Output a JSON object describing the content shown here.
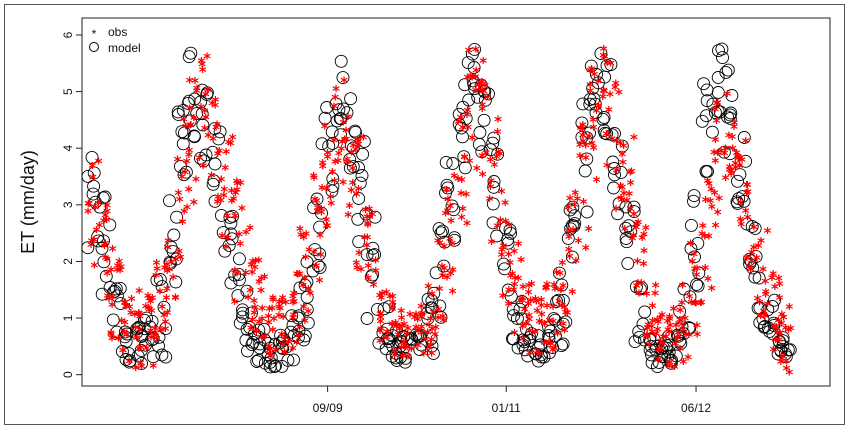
{
  "chart_data": {
    "type": "scatter",
    "title": "",
    "xlabel": "",
    "ylabel": "ET (mm/day)",
    "ylim": [
      -0.2,
      6.3
    ],
    "yticks": [
      0,
      1,
      2,
      3,
      4,
      5,
      6
    ],
    "x_range_months": [
      "2007-11",
      "2013-06"
    ],
    "x_ticks": [
      {
        "label": "09/09",
        "date": "2009-09"
      },
      {
        "label": "01/11",
        "date": "2011-01"
      },
      {
        "label": "06/12",
        "date": "2012-06"
      }
    ],
    "grid": false,
    "legend_position": "top-left",
    "legend": [
      {
        "name": "obs",
        "marker": "*",
        "color": "#ff0000"
      },
      {
        "name": "model",
        "marker": "o",
        "color": "#000000"
      }
    ],
    "series": [
      {
        "name": "obs",
        "marker": "*",
        "color": "#ff0000",
        "envelope": [
          {
            "date": "2007-12",
            "low": 1.8,
            "high": 3.8
          },
          {
            "date": "2008-01",
            "low": 1.2,
            "high": 3.2
          },
          {
            "date": "2008-02",
            "low": 0.6,
            "high": 2.2
          },
          {
            "date": "2008-03",
            "low": 0.2,
            "high": 1.4
          },
          {
            "date": "2008-04",
            "low": 0.0,
            "high": 1.6
          },
          {
            "date": "2008-05",
            "low": 0.1,
            "high": 1.8
          },
          {
            "date": "2008-06",
            "low": 0.3,
            "high": 2.0
          },
          {
            "date": "2008-07",
            "low": 0.8,
            "high": 2.8
          },
          {
            "date": "2008-08",
            "low": 2.0,
            "high": 4.5
          },
          {
            "date": "2008-09",
            "low": 3.0,
            "high": 5.2
          },
          {
            "date": "2008-10",
            "low": 3.5,
            "high": 5.6
          },
          {
            "date": "2008-11",
            "low": 2.8,
            "high": 5.0
          },
          {
            "date": "2008-12",
            "low": 2.0,
            "high": 4.2
          },
          {
            "date": "2009-01",
            "low": 1.2,
            "high": 3.4
          },
          {
            "date": "2009-02",
            "low": 0.8,
            "high": 2.6
          },
          {
            "date": "2009-03",
            "low": 0.4,
            "high": 2.0
          },
          {
            "date": "2009-04",
            "low": 0.2,
            "high": 1.5
          },
          {
            "date": "2009-05",
            "low": 0.2,
            "high": 1.4
          },
          {
            "date": "2009-06",
            "low": 0.4,
            "high": 1.8
          },
          {
            "date": "2009-07",
            "low": 0.8,
            "high": 2.6
          },
          {
            "date": "2009-08",
            "low": 1.6,
            "high": 3.6
          },
          {
            "date": "2009-09",
            "low": 2.4,
            "high": 4.6
          },
          {
            "date": "2009-10",
            "low": 3.2,
            "high": 5.2
          },
          {
            "date": "2009-11",
            "low": 2.8,
            "high": 5.0
          },
          {
            "date": "2009-12",
            "low": 1.8,
            "high": 4.2
          },
          {
            "date": "2010-01",
            "low": 1.0,
            "high": 3.0
          },
          {
            "date": "2010-02",
            "low": 0.4,
            "high": 1.8
          },
          {
            "date": "2010-03",
            "low": 0.2,
            "high": 1.4
          },
          {
            "date": "2010-04",
            "low": 0.1,
            "high": 1.2
          },
          {
            "date": "2010-05",
            "low": 0.1,
            "high": 1.2
          },
          {
            "date": "2010-06",
            "low": 0.2,
            "high": 1.6
          },
          {
            "date": "2010-07",
            "low": 0.6,
            "high": 2.4
          },
          {
            "date": "2010-08",
            "low": 1.4,
            "high": 3.6
          },
          {
            "date": "2010-09",
            "low": 2.4,
            "high": 4.8
          },
          {
            "date": "2010-10",
            "low": 3.4,
            "high": 5.8
          },
          {
            "date": "2010-11",
            "low": 3.2,
            "high": 5.6
          },
          {
            "date": "2010-12",
            "low": 2.2,
            "high": 4.8
          },
          {
            "date": "2011-01",
            "low": 1.2,
            "high": 3.6
          },
          {
            "date": "2011-02",
            "low": 0.6,
            "high": 2.4
          },
          {
            "date": "2011-03",
            "low": 0.3,
            "high": 1.6
          },
          {
            "date": "2011-04",
            "low": 0.2,
            "high": 1.4
          },
          {
            "date": "2011-05",
            "low": 0.3,
            "high": 1.6
          },
          {
            "date": "2011-06",
            "low": 0.6,
            "high": 2.2
          },
          {
            "date": "2011-07",
            "low": 1.2,
            "high": 3.2
          },
          {
            "date": "2011-08",
            "low": 2.2,
            "high": 4.6
          },
          {
            "date": "2011-09",
            "low": 3.4,
            "high": 5.6
          },
          {
            "date": "2011-10",
            "low": 3.6,
            "high": 6.0
          },
          {
            "date": "2011-11",
            "low": 2.8,
            "high": 5.2
          },
          {
            "date": "2011-12",
            "low": 1.6,
            "high": 4.2
          },
          {
            "date": "2012-01",
            "low": 0.8,
            "high": 2.8
          },
          {
            "date": "2012-02",
            "low": 0.3,
            "high": 1.6
          },
          {
            "date": "2012-03",
            "low": 0.1,
            "high": 1.2
          },
          {
            "date": "2012-04",
            "low": 0.1,
            "high": 1.2
          },
          {
            "date": "2012-05",
            "low": 0.2,
            "high": 1.6
          },
          {
            "date": "2012-06",
            "low": 0.6,
            "high": 2.4
          },
          {
            "date": "2012-07",
            "low": 1.4,
            "high": 3.6
          },
          {
            "date": "2012-08",
            "low": 2.6,
            "high": 4.8
          },
          {
            "date": "2012-09",
            "low": 3.0,
            "high": 5.0
          },
          {
            "date": "2012-10",
            "low": 2.6,
            "high": 4.2
          },
          {
            "date": "2012-11",
            "low": 1.8,
            "high": 3.4
          },
          {
            "date": "2012-12",
            "low": 1.0,
            "high": 2.6
          },
          {
            "date": "2013-01",
            "low": 0.4,
            "high": 1.8
          },
          {
            "date": "2013-02",
            "low": 0.0,
            "high": 1.2
          }
        ]
      },
      {
        "name": "model",
        "marker": "o",
        "color": "#000000",
        "envelope": [
          {
            "date": "2007-12",
            "low": 2.2,
            "high": 3.9
          },
          {
            "date": "2008-01",
            "low": 1.4,
            "high": 3.2
          },
          {
            "date": "2008-02",
            "low": 0.5,
            "high": 1.8
          },
          {
            "date": "2008-03",
            "low": 0.1,
            "high": 0.8
          },
          {
            "date": "2008-04",
            "low": 0.1,
            "high": 0.9
          },
          {
            "date": "2008-05",
            "low": 0.2,
            "high": 1.2
          },
          {
            "date": "2008-06",
            "low": 0.3,
            "high": 1.8
          },
          {
            "date": "2008-07",
            "low": 1.2,
            "high": 3.2
          },
          {
            "date": "2008-08",
            "low": 3.2,
            "high": 5.4
          },
          {
            "date": "2008-09",
            "low": 4.2,
            "high": 5.8
          },
          {
            "date": "2008-10",
            "low": 3.6,
            "high": 5.4
          },
          {
            "date": "2008-11",
            "low": 2.6,
            "high": 4.4
          },
          {
            "date": "2008-12",
            "low": 1.6,
            "high": 3.2
          },
          {
            "date": "2009-01",
            "low": 0.8,
            "high": 2.4
          },
          {
            "date": "2009-02",
            "low": 0.3,
            "high": 1.6
          },
          {
            "date": "2009-03",
            "low": 0.1,
            "high": 0.9
          },
          {
            "date": "2009-04",
            "low": 0.1,
            "high": 0.6
          },
          {
            "date": "2009-05",
            "low": 0.1,
            "high": 0.7
          },
          {
            "date": "2009-06",
            "low": 0.2,
            "high": 1.2
          },
          {
            "date": "2009-07",
            "low": 0.6,
            "high": 2.2
          },
          {
            "date": "2009-08",
            "low": 1.8,
            "high": 3.4
          },
          {
            "date": "2009-09",
            "low": 3.2,
            "high": 5.0
          },
          {
            "date": "2009-10",
            "low": 4.2,
            "high": 5.6
          },
          {
            "date": "2009-11",
            "low": 3.6,
            "high": 5.0
          },
          {
            "date": "2009-12",
            "low": 2.2,
            "high": 4.2
          },
          {
            "date": "2010-01",
            "low": 0.8,
            "high": 2.8
          },
          {
            "date": "2010-02",
            "low": 0.3,
            "high": 1.4
          },
          {
            "date": "2010-03",
            "low": 0.2,
            "high": 0.8
          },
          {
            "date": "2010-04",
            "low": 0.2,
            "high": 0.7
          },
          {
            "date": "2010-05",
            "low": 0.2,
            "high": 0.8
          },
          {
            "date": "2010-06",
            "low": 0.3,
            "high": 1.4
          },
          {
            "date": "2010-07",
            "low": 0.8,
            "high": 2.6
          },
          {
            "date": "2010-08",
            "low": 2.0,
            "high": 4.0
          },
          {
            "date": "2010-09",
            "low": 3.6,
            "high": 5.2
          },
          {
            "date": "2010-10",
            "low": 4.6,
            "high": 5.8
          },
          {
            "date": "2010-11",
            "low": 3.8,
            "high": 5.4
          },
          {
            "date": "2010-12",
            "low": 2.4,
            "high": 4.2
          },
          {
            "date": "2011-01",
            "low": 1.0,
            "high": 2.8
          },
          {
            "date": "2011-02",
            "low": 0.3,
            "high": 1.4
          },
          {
            "date": "2011-03",
            "low": 0.2,
            "high": 0.8
          },
          {
            "date": "2011-04",
            "low": 0.2,
            "high": 0.7
          },
          {
            "date": "2011-05",
            "low": 0.3,
            "high": 1.0
          },
          {
            "date": "2011-06",
            "low": 0.5,
            "high": 1.8
          },
          {
            "date": "2011-07",
            "low": 1.2,
            "high": 3.0
          },
          {
            "date": "2011-08",
            "low": 2.8,
            "high": 4.8
          },
          {
            "date": "2011-09",
            "low": 4.4,
            "high": 5.8
          },
          {
            "date": "2011-10",
            "low": 4.2,
            "high": 5.6
          },
          {
            "date": "2011-11",
            "low": 2.8,
            "high": 4.4
          },
          {
            "date": "2011-12",
            "low": 1.4,
            "high": 3.0
          },
          {
            "date": "2012-01",
            "low": 0.5,
            "high": 1.6
          },
          {
            "date": "2012-02",
            "low": 0.2,
            "high": 0.8
          },
          {
            "date": "2012-03",
            "low": 0.1,
            "high": 0.6
          },
          {
            "date": "2012-04",
            "low": 0.2,
            "high": 0.8
          },
          {
            "date": "2012-05",
            "low": 0.4,
            "high": 1.6
          },
          {
            "date": "2012-06",
            "low": 1.4,
            "high": 3.4
          },
          {
            "date": "2012-07",
            "low": 3.4,
            "high": 5.2
          },
          {
            "date": "2012-08",
            "low": 4.6,
            "high": 6.0
          },
          {
            "date": "2012-09",
            "low": 3.8,
            "high": 5.4
          },
          {
            "date": "2012-10",
            "low": 2.6,
            "high": 4.2
          },
          {
            "date": "2012-11",
            "low": 1.6,
            "high": 3.0
          },
          {
            "date": "2012-12",
            "low": 0.8,
            "high": 2.0
          },
          {
            "date": "2013-01",
            "low": 0.3,
            "high": 1.4
          },
          {
            "date": "2013-02",
            "low": 0.1,
            "high": 0.8
          }
        ]
      }
    ]
  }
}
